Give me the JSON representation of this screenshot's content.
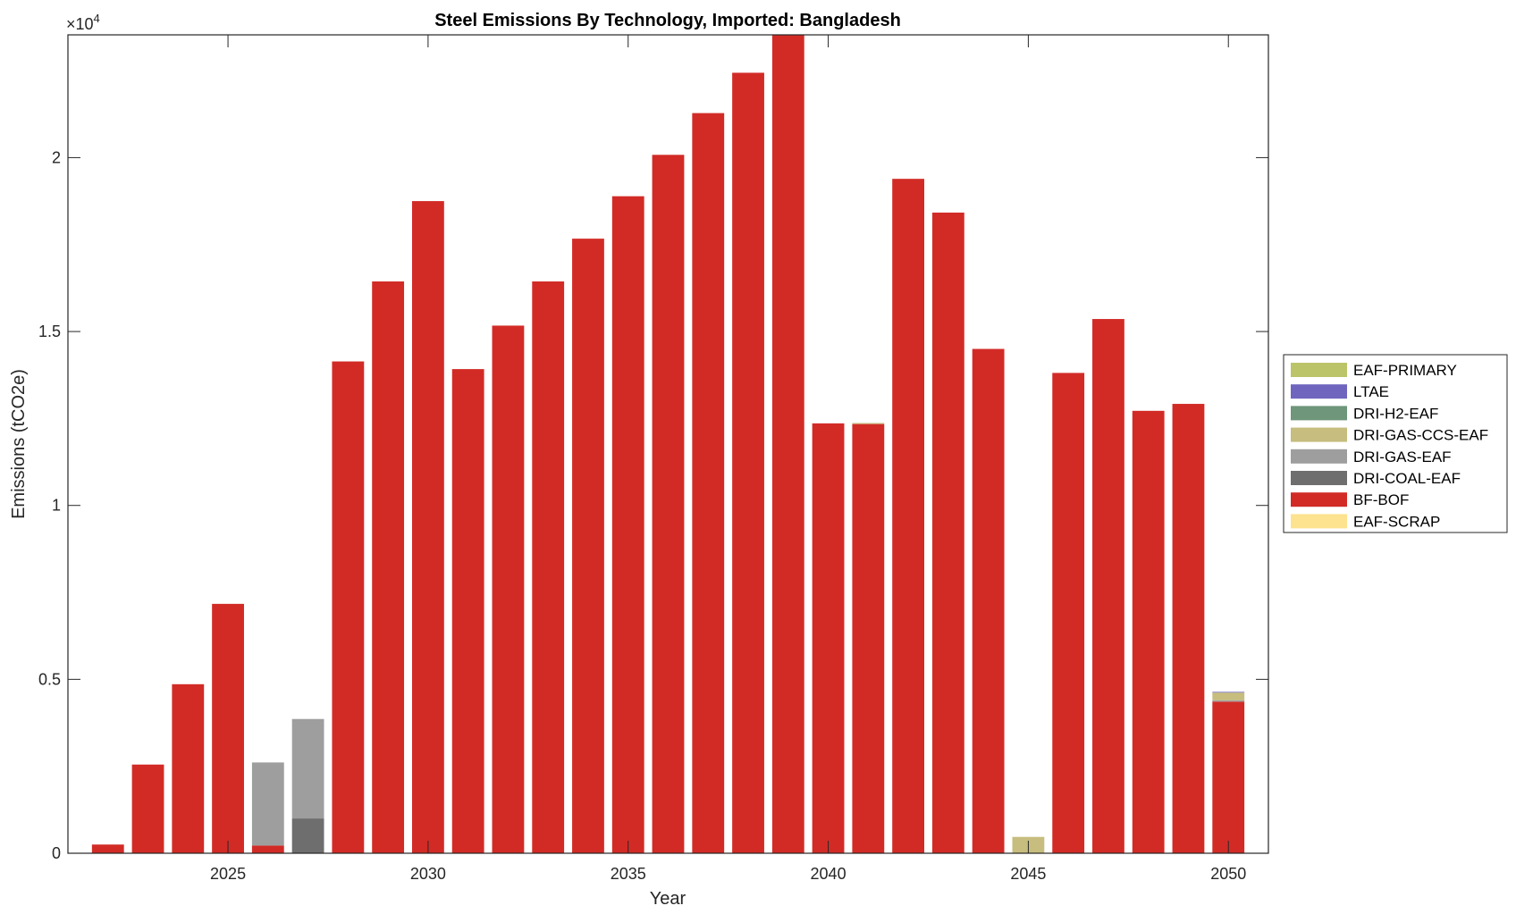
{
  "chart_data": {
    "type": "bar",
    "stacked": true,
    "title": "Steel Emissions By Technology, Imported: Bangladesh",
    "xlabel": "Year",
    "ylabel": "Emissions (tCO2e)",
    "y_exponent_label": "×10",
    "y_exponent": "4",
    "xlim": [
      2021,
      2051
    ],
    "ylim": [
      0,
      23530
    ],
    "xticks": [
      2025,
      2030,
      2035,
      2040,
      2045,
      2050
    ],
    "yticks": [
      0,
      5000,
      10000,
      15000,
      20000
    ],
    "ytick_labels": [
      "0",
      "0.5",
      "1",
      "1.5",
      "2"
    ],
    "grid": false,
    "legend_position": "right",
    "categories": [
      2022,
      2023,
      2024,
      2025,
      2026,
      2027,
      2028,
      2029,
      2030,
      2031,
      2032,
      2033,
      2034,
      2035,
      2036,
      2037,
      2038,
      2039,
      2040,
      2041,
      2042,
      2043,
      2044,
      2045,
      2046,
      2047,
      2048,
      2049,
      2050
    ],
    "series": [
      {
        "name": "EAF-SCRAP",
        "color": "#fde38f",
        "values": [
          0,
          0,
          0,
          0,
          0,
          0,
          0,
          0,
          0,
          0,
          0,
          0,
          0,
          0,
          0,
          0,
          0,
          0,
          0,
          0,
          0,
          0,
          0,
          0,
          0,
          0,
          0,
          0,
          0
        ]
      },
      {
        "name": "BF-BOF",
        "color": "#d22b26",
        "values": [
          250,
          2550,
          4860,
          7170,
          220,
          0,
          14140,
          16440,
          18750,
          13920,
          15170,
          16440,
          17670,
          18890,
          20080,
          21280,
          22440,
          24000,
          12360,
          12340,
          19390,
          18420,
          14500,
          0,
          13810,
          15360,
          12720,
          12920,
          4360
        ]
      },
      {
        "name": "DRI-COAL-EAF",
        "color": "#6e6e6e",
        "values": [
          0,
          0,
          0,
          0,
          0,
          1000,
          0,
          0,
          0,
          0,
          0,
          0,
          0,
          0,
          0,
          0,
          0,
          0,
          0,
          0,
          0,
          0,
          0,
          0,
          0,
          0,
          0,
          0,
          0
        ]
      },
      {
        "name": "DRI-GAS-EAF",
        "color": "#9e9e9e",
        "values": [
          0,
          0,
          0,
          0,
          2390,
          2860,
          0,
          0,
          0,
          0,
          0,
          0,
          0,
          0,
          0,
          0,
          0,
          0,
          0,
          0,
          0,
          0,
          0,
          0,
          0,
          0,
          0,
          0,
          40
        ]
      },
      {
        "name": "DRI-GAS-CCS-EAF",
        "color": "#c6bd7e",
        "values": [
          0,
          0,
          0,
          0,
          0,
          0,
          0,
          0,
          0,
          0,
          0,
          0,
          0,
          0,
          0,
          0,
          0,
          0,
          0,
          30,
          0,
          0,
          0,
          470,
          0,
          0,
          0,
          0,
          220
        ]
      },
      {
        "name": "DRI-H2-EAF",
        "color": "#6f967a",
        "values": [
          0,
          0,
          0,
          0,
          0,
          0,
          0,
          0,
          0,
          0,
          0,
          0,
          0,
          0,
          0,
          0,
          0,
          0,
          0,
          0,
          0,
          0,
          0,
          0,
          0,
          0,
          0,
          0,
          0
        ]
      },
      {
        "name": "LTAE",
        "color": "#7065be",
        "values": [
          0,
          0,
          0,
          0,
          0,
          0,
          0,
          0,
          0,
          0,
          0,
          0,
          0,
          0,
          0,
          0,
          0,
          0,
          0,
          0,
          0,
          0,
          0,
          0,
          0,
          0,
          0,
          0,
          20
        ]
      },
      {
        "name": "EAF-PRIMARY",
        "color": "#bcc46a",
        "values": [
          0,
          0,
          0,
          0,
          0,
          0,
          0,
          0,
          0,
          0,
          0,
          0,
          0,
          0,
          0,
          0,
          0,
          0,
          0,
          0,
          0,
          0,
          0,
          0,
          0,
          0,
          0,
          0,
          0
        ]
      }
    ],
    "legend_order": [
      "EAF-PRIMARY",
      "LTAE",
      "DRI-H2-EAF",
      "DRI-GAS-CCS-EAF",
      "DRI-GAS-EAF",
      "DRI-COAL-EAF",
      "BF-BOF",
      "EAF-SCRAP"
    ]
  }
}
